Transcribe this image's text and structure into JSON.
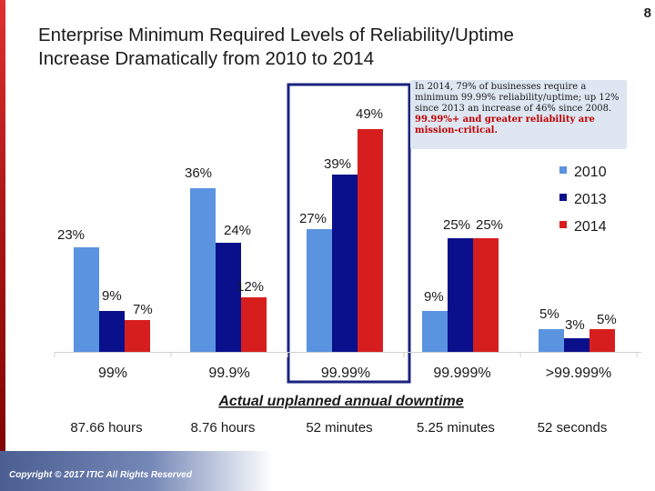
{
  "page_number": "8",
  "title_line1": "Enterprise Minimum Required Levels of Reliability/Uptime",
  "title_line2": "Increase Dramatically from 2010 to 2014",
  "callout": {
    "text_normal": "In 2014, 79% of businesses require a minimum 99.99% reliability/uptime; up 12% since 2013 an increase of 46% since 2008. ",
    "text_highlight": "99.99%+ and greater reliability are mission-critical."
  },
  "copyright": "Copyright © 2017 ITIC All Rights Reserved",
  "colors": {
    "s2010": "#5a93df",
    "s2013": "#0a0f8c",
    "s2014": "#d71e1e",
    "highlight_box": "#1a237e"
  },
  "chart_data": {
    "type": "bar",
    "categories": [
      "99%",
      "99.9%",
      "99.99%",
      "99.999%",
      ">99.999%"
    ],
    "downtime_label": "Actual unplanned annual downtime",
    "downtime": [
      "87.66 hours",
      "8.76 hours",
      "52 minutes",
      "5.25 minutes",
      "52 seconds"
    ],
    "series": [
      {
        "name": "2010",
        "values": [
          23,
          36,
          27,
          9,
          5
        ]
      },
      {
        "name": "2013",
        "values": [
          9,
          24,
          39,
          25,
          3
        ]
      },
      {
        "name": "2014",
        "values": [
          7,
          12,
          49,
          25,
          5
        ]
      }
    ],
    "data_labels": [
      [
        "23%",
        "36%",
        "27%",
        "9%",
        "5%"
      ],
      [
        "9%",
        "24%",
        "39%",
        "25%",
        "3%"
      ],
      [
        "7%",
        "12%",
        "49%",
        "25%",
        "5%"
      ]
    ],
    "legend_position": "right",
    "highlighted_category": "99.99%",
    "grid": false
  }
}
